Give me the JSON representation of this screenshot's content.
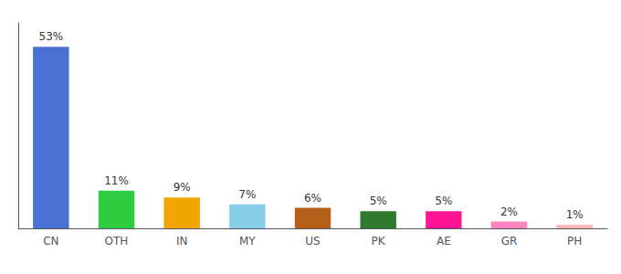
{
  "chart_data": {
    "type": "bar",
    "categories": [
      "CN",
      "OTH",
      "IN",
      "MY",
      "US",
      "PK",
      "AE",
      "GR",
      "PH"
    ],
    "values": [
      53,
      11,
      9,
      7,
      6,
      5,
      5,
      2,
      1
    ],
    "value_labels": [
      "53%",
      "11%",
      "9%",
      "7%",
      "6%",
      "5%",
      "5%",
      "2%",
      "1%"
    ],
    "colors": [
      "#4a72d4",
      "#2ecc40",
      "#f0a500",
      "#87ceeb",
      "#b5601a",
      "#2d7a2d",
      "#ff1493",
      "#ff85c0",
      "#ffb6b6"
    ],
    "data_labels": true,
    "ylim": [
      0,
      60
    ],
    "tick_labels": "x",
    "grid": false
  }
}
